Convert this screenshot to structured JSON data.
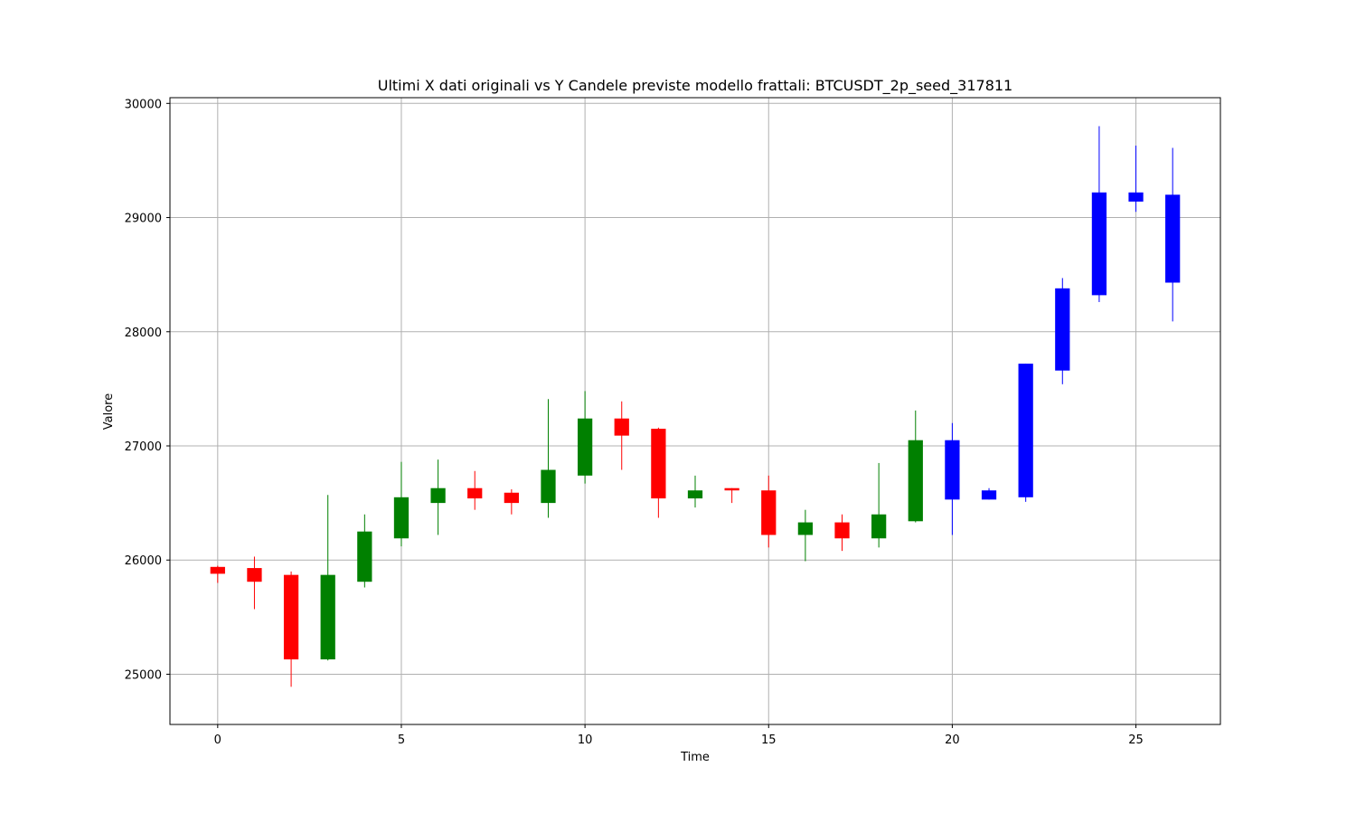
{
  "chart_data": {
    "type": "candlestick",
    "title": "Ultimi X dati originali vs Y Candele previste modello frattali: BTCUSDT_2p_seed_317811",
    "xlabel": "Time",
    "ylabel": "Valore",
    "xlim": [
      -1.3,
      27.3
    ],
    "ylim": [
      24560,
      30050
    ],
    "xticks": [
      0,
      5,
      10,
      15,
      20,
      25
    ],
    "yticks": [
      25000,
      26000,
      27000,
      28000,
      29000,
      30000
    ],
    "grid": true,
    "colors": {
      "up": "#008000",
      "down": "#ff0000",
      "predicted": "#0000ff",
      "grid": "#b0b0b0"
    },
    "original": [
      {
        "t": 0,
        "open": 25940,
        "high": 25950,
        "low": 25800,
        "close": 25880
      },
      {
        "t": 1,
        "open": 25930,
        "high": 26030,
        "low": 25570,
        "close": 25810
      },
      {
        "t": 2,
        "open": 25870,
        "high": 25900,
        "low": 24890,
        "close": 25130
      },
      {
        "t": 3,
        "open": 25130,
        "high": 26570,
        "low": 25120,
        "close": 25870
      },
      {
        "t": 4,
        "open": 25810,
        "high": 26400,
        "low": 25760,
        "close": 26250
      },
      {
        "t": 5,
        "open": 26190,
        "high": 26860,
        "low": 26120,
        "close": 26550
      },
      {
        "t": 6,
        "open": 26500,
        "high": 26880,
        "low": 26220,
        "close": 26630
      },
      {
        "t": 7,
        "open": 26630,
        "high": 26780,
        "low": 26440,
        "close": 26540
      },
      {
        "t": 8,
        "open": 26590,
        "high": 26620,
        "low": 26400,
        "close": 26500
      },
      {
        "t": 9,
        "open": 26500,
        "high": 27410,
        "low": 26370,
        "close": 26790
      },
      {
        "t": 10,
        "open": 26740,
        "high": 27480,
        "low": 26670,
        "close": 27240
      },
      {
        "t": 11,
        "open": 27240,
        "high": 27390,
        "low": 26790,
        "close": 27090
      },
      {
        "t": 12,
        "open": 27150,
        "high": 27160,
        "low": 26370,
        "close": 26540
      },
      {
        "t": 13,
        "open": 26540,
        "high": 26740,
        "low": 26460,
        "close": 26610
      },
      {
        "t": 14,
        "open": 26630,
        "high": 26630,
        "low": 26500,
        "close": 26610
      },
      {
        "t": 15,
        "open": 26610,
        "high": 26740,
        "low": 26110,
        "close": 26220
      },
      {
        "t": 16,
        "open": 26220,
        "high": 26440,
        "low": 25990,
        "close": 26330
      },
      {
        "t": 17,
        "open": 26330,
        "high": 26400,
        "low": 26080,
        "close": 26190
      },
      {
        "t": 18,
        "open": 26190,
        "high": 26850,
        "low": 26110,
        "close": 26400
      },
      {
        "t": 19,
        "open": 26340,
        "high": 27310,
        "low": 26330,
        "close": 27050
      }
    ],
    "predicted": [
      {
        "t": 20,
        "open": 27050,
        "high": 27200,
        "low": 26220,
        "close": 26530
      },
      {
        "t": 21,
        "open": 26610,
        "high": 26630,
        "low": 26530,
        "close": 26530
      },
      {
        "t": 22,
        "open": 26550,
        "high": 27720,
        "low": 26510,
        "close": 27720
      },
      {
        "t": 23,
        "open": 27660,
        "high": 28470,
        "low": 27540,
        "close": 28380
      },
      {
        "t": 24,
        "open": 28320,
        "high": 29800,
        "low": 28260,
        "close": 29220
      },
      {
        "t": 25,
        "open": 29220,
        "high": 29630,
        "low": 29050,
        "close": 29140
      },
      {
        "t": 26,
        "open": 29200,
        "high": 29610,
        "low": 28090,
        "close": 28430
      }
    ]
  }
}
